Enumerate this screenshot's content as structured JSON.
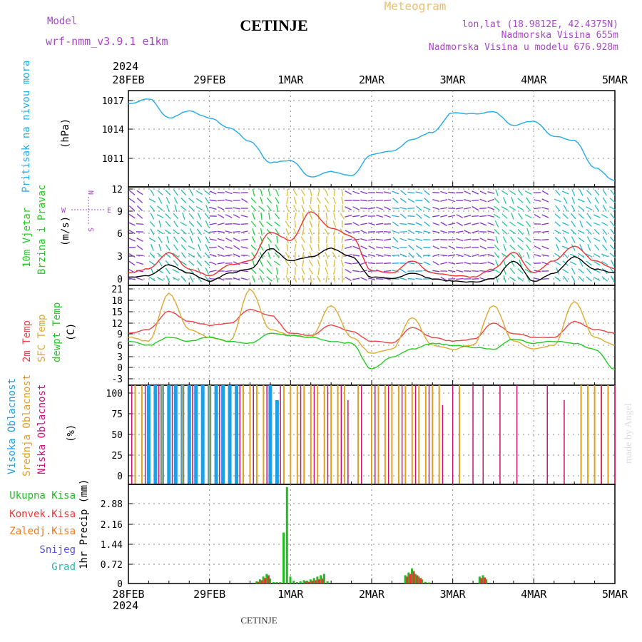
{
  "header": {
    "model_label": "Model",
    "model_name": "wrf-nmm_v3.9.1 e1km",
    "title": "CETINJE",
    "meteogram_label": "Meteogram",
    "lonlat": "lon,lat (18.9812E, 42.4375N)",
    "elevation": "Nadmorska Visina 655m",
    "model_elevation": "Nadmorska Visina u modelu 676.928m",
    "footer_location": "CETINJE",
    "watermark": "made by Angel",
    "year_top": "2024",
    "year_bottom": "2024"
  },
  "colors": {
    "pressure": "#22aaee",
    "temp2m": "#ee4444",
    "sfc": "#ddaa33",
    "dewpt": "#22cc22",
    "high_cloud": "#1ea0e8",
    "mid_cloud": "#e0a020",
    "low_cloud": "#cc1177",
    "total_precip": "#22bb22",
    "conv_precip": "#ee3333",
    "frozen_precip": "#ee7722",
    "snow": "#5555dd",
    "hail": "#22bbaa",
    "grid": "#888888",
    "label_purple": "#aa44cc"
  },
  "x_axis": {
    "start": "2024-02-28 00:00",
    "end": "2024-03-05 00:00",
    "ticks": [
      "28FEB",
      "29FEB",
      "1MAR",
      "2MAR",
      "3MAR",
      "4MAR",
      "5MAR"
    ]
  },
  "chart_data": [
    {
      "type": "line",
      "panel": "pressure",
      "ylabel_main": "Pritisak na nivou mora",
      "unit": "(hPa)",
      "ylim": [
        1009,
        1018.5
      ],
      "yticks": [
        "1017",
        "1014",
        "1011"
      ],
      "series": [
        {
          "name": "Pritisak na nivou mora",
          "x": [
            "2024-02-28 00:00",
            "2024-02-28 06:00",
            "2024-02-28 12:00",
            "2024-02-28 18:00",
            "2024-02-29 00:00",
            "2024-02-29 06:00",
            "2024-02-29 12:00",
            "2024-02-29 18:00",
            "2024-03-01 00:00",
            "2024-03-01 06:00",
            "2024-03-01 12:00",
            "2024-03-01 18:00",
            "2024-03-02 00:00",
            "2024-03-02 06:00",
            "2024-03-02 12:00",
            "2024-03-02 18:00",
            "2024-03-03 00:00",
            "2024-03-03 06:00",
            "2024-03-03 12:00",
            "2024-03-03 18:00",
            "2024-03-04 00:00",
            "2024-03-04 06:00",
            "2024-03-04 12:00",
            "2024-03-04 18:00",
            "2024-03-05 00:00"
          ],
          "y": [
            1017.2,
            1017.7,
            1015.8,
            1016.5,
            1015.8,
            1014.8,
            1013.5,
            1011.4,
            1011.6,
            1010,
            1010.5,
            1010.1,
            1012.2,
            1012.5,
            1013.7,
            1014.4,
            1016.3,
            1016.2,
            1016.4,
            1015.1,
            1015.5,
            1014,
            1013.6,
            1010.9,
            1009.6
          ]
        }
      ]
    },
    {
      "type": "line",
      "panel": "wind",
      "ylabel_main": "10m Vjetar",
      "ylabel_sub": "Brzina i Pravac",
      "unit": "(m/s)",
      "compass": [
        "N",
        "E",
        "S",
        "W"
      ],
      "ylim": [
        0,
        12
      ],
      "yticks": [
        "12",
        "9",
        "6",
        "3",
        "0"
      ],
      "series": [
        {
          "name": "speed",
          "x": [
            "2024-02-28 00:00",
            "2024-02-28 06:00",
            "2024-02-28 12:00",
            "2024-02-28 18:00",
            "2024-02-29 00:00",
            "2024-02-29 06:00",
            "2024-02-29 12:00",
            "2024-02-29 18:00",
            "2024-03-01 00:00",
            "2024-03-01 06:00",
            "2024-03-01 12:00",
            "2024-03-01 18:00",
            "2024-03-02 00:00",
            "2024-03-02 06:00",
            "2024-03-02 12:00",
            "2024-03-02 18:00",
            "2024-03-03 00:00",
            "2024-03-03 06:00",
            "2024-03-03 12:00",
            "2024-03-03 18:00",
            "2024-03-04 00:00",
            "2024-03-04 06:00",
            "2024-03-04 12:00",
            "2024-03-04 18:00",
            "2024-03-05 00:00"
          ],
          "y": [
            1,
            1.2,
            2.5,
            1.5,
            0.5,
            1.5,
            2,
            4.5,
            3,
            3.5,
            4.5,
            3.5,
            1,
            0.8,
            1.5,
            0.8,
            0.5,
            0.4,
            0.8,
            3,
            0.5,
            1.5,
            3.5,
            2,
            1.5
          ]
        },
        {
          "name": "gust",
          "x": [
            "2024-02-28 00:00",
            "2024-02-28 06:00",
            "2024-02-28 12:00",
            "2024-02-28 18:00",
            "2024-02-29 00:00",
            "2024-02-29 06:00",
            "2024-02-29 12:00",
            "2024-02-29 18:00",
            "2024-03-01 00:00",
            "2024-03-01 06:00",
            "2024-03-01 12:00",
            "2024-03-01 18:00",
            "2024-03-02 00:00",
            "2024-03-02 06:00",
            "2024-03-02 12:00",
            "2024-03-02 18:00",
            "2024-03-03 00:00",
            "2024-03-03 06:00",
            "2024-03-03 12:00",
            "2024-03-03 18:00",
            "2024-03-04 00:00",
            "2024-03-04 06:00",
            "2024-03-04 12:00",
            "2024-03-04 18:00",
            "2024-03-05 00:00"
          ],
          "y": [
            1.5,
            2,
            4,
            2,
            1.2,
            2.5,
            3,
            6.5,
            5.5,
            9,
            7,
            6,
            1.8,
            1.5,
            3,
            1.5,
            1.2,
            1,
            2,
            4,
            1.5,
            3,
            4.8,
            3,
            2
          ]
        }
      ]
    },
    {
      "type": "line",
      "panel": "temperature",
      "ylabel_main": "2m Temp",
      "ylabel_sub": "SFC Temp",
      "ylabel_third": "dewpt Temp",
      "unit": "(C)",
      "ylim": [
        -4,
        21
      ],
      "yticks": [
        "21",
        "18",
        "15",
        "12",
        "9",
        "6",
        "3",
        "0",
        "-3"
      ],
      "series": [
        {
          "name": "2m Temp",
          "x": [
            "2024-02-28 00:00",
            "2024-02-28 06:00",
            "2024-02-28 12:00",
            "2024-02-28 18:00",
            "2024-02-29 00:00",
            "2024-02-29 06:00",
            "2024-02-29 12:00",
            "2024-02-29 18:00",
            "2024-03-01 00:00",
            "2024-03-01 06:00",
            "2024-03-01 12:00",
            "2024-03-01 18:00",
            "2024-03-02 00:00",
            "2024-03-02 06:00",
            "2024-03-02 12:00",
            "2024-03-02 18:00",
            "2024-03-03 00:00",
            "2024-03-03 06:00",
            "2024-03-03 12:00",
            "2024-03-03 18:00",
            "2024-03-04 00:00",
            "2024-03-04 06:00",
            "2024-03-04 12:00",
            "2024-03-04 18:00",
            "2024-03-05 00:00"
          ],
          "y": [
            9,
            10,
            14.5,
            12,
            11,
            11.5,
            15,
            13.5,
            9,
            8.5,
            11,
            9.5,
            7,
            6.5,
            10.5,
            8,
            7,
            7.5,
            11.5,
            9,
            8,
            8,
            12,
            10,
            9
          ]
        },
        {
          "name": "SFC Temp",
          "x": [
            "2024-02-28 00:00",
            "2024-02-28 06:00",
            "2024-02-28 12:00",
            "2024-02-28 18:00",
            "2024-02-29 00:00",
            "2024-02-29 06:00",
            "2024-02-29 12:00",
            "2024-02-29 18:00",
            "2024-03-01 00:00",
            "2024-03-01 06:00",
            "2024-03-01 12:00",
            "2024-03-01 18:00",
            "2024-03-02 00:00",
            "2024-03-02 06:00",
            "2024-03-02 12:00",
            "2024-03-02 18:00",
            "2024-03-03 00:00",
            "2024-03-03 06:00",
            "2024-03-03 12:00",
            "2024-03-03 18:00",
            "2024-03-04 00:00",
            "2024-03-04 06:00",
            "2024-03-04 12:00",
            "2024-03-04 18:00",
            "2024-03-05 00:00"
          ],
          "y": [
            8,
            7,
            19,
            10,
            8,
            7,
            20,
            10,
            8.5,
            8,
            16,
            8,
            4,
            5,
            13,
            6,
            5,
            6,
            16,
            7,
            5,
            6,
            17,
            8,
            6
          ]
        },
        {
          "name": "dewpt Temp",
          "x": [
            "2024-02-28 00:00",
            "2024-02-28 06:00",
            "2024-02-28 12:00",
            "2024-02-28 18:00",
            "2024-02-29 00:00",
            "2024-02-29 06:00",
            "2024-02-29 12:00",
            "2024-02-29 18:00",
            "2024-03-01 00:00",
            "2024-03-01 06:00",
            "2024-03-01 12:00",
            "2024-03-01 18:00",
            "2024-03-02 00:00",
            "2024-03-02 06:00",
            "2024-03-02 12:00",
            "2024-03-02 18:00",
            "2024-03-03 00:00",
            "2024-03-03 06:00",
            "2024-03-03 12:00",
            "2024-03-03 18:00",
            "2024-03-04 00:00",
            "2024-03-04 06:00",
            "2024-03-04 12:00",
            "2024-03-04 18:00",
            "2024-03-05 00:00"
          ],
          "y": [
            7,
            6,
            8,
            7,
            8,
            7,
            6.5,
            9,
            8.5,
            8,
            7,
            6.5,
            0,
            3,
            5,
            6.5,
            6,
            5.5,
            5,
            7.5,
            6.5,
            7,
            6.5,
            5,
            0
          ]
        }
      ]
    },
    {
      "type": "bar",
      "panel": "cloud",
      "ylabel_main": "Visoka Oblacnost",
      "ylabel_sub": "Srednja Oblacnost",
      "ylabel_third": "Niska Oblacnost",
      "unit": "(%)",
      "ylim": [
        0,
        100
      ],
      "yticks": [
        "100",
        "75",
        "50",
        "25",
        "0"
      ],
      "series": [
        {
          "name": "Visoka Oblacnost",
          "x": [
            "2024-02-28 06:00",
            "2024-02-28 08:00",
            "2024-02-28 10:00",
            "2024-02-28 12:00",
            "2024-02-28 14:00",
            "2024-02-28 16:00",
            "2024-02-28 18:00",
            "2024-02-28 20:00",
            "2024-02-28 22:00",
            "2024-02-29 00:00",
            "2024-02-29 02:00",
            "2024-02-29 04:00",
            "2024-02-29 06:00",
            "2024-02-29 08:00",
            "2024-02-29 18:00",
            "2024-02-29 20:00"
          ],
          "y": [
            100,
            100,
            100,
            100,
            100,
            100,
            100,
            100,
            100,
            100,
            100,
            100,
            100,
            100,
            100,
            85
          ]
        },
        {
          "name": "Srednja Oblacnost",
          "x": [
            "2024-02-28 02:00",
            "2024-02-28 04:00",
            "2024-02-28 10:00",
            "2024-02-28 16:00",
            "2024-02-29 00:00",
            "2024-02-29 10:00",
            "2024-02-29 12:00",
            "2024-02-29 14:00",
            "2024-02-29 16:00",
            "2024-02-29 22:00",
            "2024-03-01 00:00",
            "2024-03-01 02:00",
            "2024-03-01 04:00",
            "2024-03-01 06:00",
            "2024-03-01 08:00",
            "2024-03-01 10:00",
            "2024-03-01 12:00",
            "2024-03-01 14:00",
            "2024-03-01 16:00",
            "2024-03-01 20:00",
            "2024-03-02 00:00",
            "2024-03-02 02:00",
            "2024-03-02 04:00",
            "2024-03-02 06:00",
            "2024-03-02 08:00",
            "2024-03-02 10:00",
            "2024-03-02 12:00",
            "2024-03-02 14:00",
            "2024-03-02 16:00",
            "2024-03-02 18:00",
            "2024-03-02 20:00",
            "2024-03-03 02:00",
            "2024-03-04 14:00",
            "2024-03-04 16:00",
            "2024-03-04 18:00",
            "2024-03-04 20:00",
            "2024-03-04 22:00",
            "2024-03-05 00:00"
          ],
          "y": [
            100,
            100,
            100,
            100,
            100,
            100,
            100,
            100,
            100,
            100,
            100,
            100,
            100,
            100,
            100,
            100,
            100,
            100,
            100,
            100,
            100,
            100,
            100,
            100,
            100,
            100,
            100,
            100,
            100,
            100,
            100,
            100,
            100,
            100,
            100,
            100,
            100,
            100
          ]
        },
        {
          "name": "Niska Oblacnost",
          "x": [
            "2024-02-28 01:00",
            "2024-02-28 05:00",
            "2024-02-28 09:00",
            "2024-02-28 13:00",
            "2024-02-28 19:00",
            "2024-02-29 03:00",
            "2024-02-29 09:00",
            "2024-02-29 13:00",
            "2024-02-29 17:00",
            "2024-02-29 21:00",
            "2024-03-01 03:00",
            "2024-03-01 07:00",
            "2024-03-01 11:00",
            "2024-03-01 15:00",
            "2024-03-01 17:00",
            "2024-03-01 21:00",
            "2024-03-02 01:00",
            "2024-03-02 05:00",
            "2024-03-02 09:00",
            "2024-03-02 13:00",
            "2024-03-02 17:00",
            "2024-03-02 21:00",
            "2024-03-03 00:00",
            "2024-03-03 06:00",
            "2024-03-03 09:00",
            "2024-03-03 14:00",
            "2024-03-03 19:00",
            "2024-03-04 04:00",
            "2024-03-04 09:00",
            "2024-03-04 20:00",
            "2024-03-05 00:00"
          ],
          "y": [
            100,
            100,
            100,
            100,
            100,
            100,
            100,
            100,
            100,
            100,
            100,
            100,
            100,
            100,
            85,
            100,
            100,
            100,
            100,
            100,
            100,
            80,
            100,
            100,
            100,
            100,
            100,
            100,
            85,
            100,
            100
          ]
        }
      ]
    },
    {
      "type": "bar",
      "panel": "precip",
      "ylabel_main": "1hr Precip (mm)",
      "legend": [
        "Ukupna Kisa",
        "Konvek.Kisa",
        "Zaledj.Kisa",
        "Snijeg",
        "Grad"
      ],
      "ylim": [
        0,
        3.6
      ],
      "yticks": [
        "2.88",
        "2.16",
        "1.44",
        "0.72",
        "0"
      ],
      "series": [
        {
          "name": "Ukupna Kisa",
          "x": [
            "2024-02-29 14:00",
            "2024-02-29 15:00",
            "2024-02-29 16:00",
            "2024-02-29 17:00",
            "2024-02-29 18:00",
            "2024-02-29 19:00",
            "2024-02-29 20:00",
            "2024-02-29 21:00",
            "2024-02-29 22:00",
            "2024-02-29 23:00",
            "2024-03-01 00:00",
            "2024-03-01 01:00",
            "2024-03-01 02:00",
            "2024-03-01 03:00",
            "2024-03-01 04:00",
            "2024-03-01 05:00",
            "2024-03-01 06:00",
            "2024-03-01 07:00",
            "2024-03-01 08:00",
            "2024-03-01 09:00",
            "2024-03-01 10:00",
            "2024-03-01 11:00",
            "2024-03-02 10:00",
            "2024-03-02 11:00",
            "2024-03-02 12:00",
            "2024-03-02 13:00",
            "2024-03-02 14:00",
            "2024-03-02 15:00",
            "2024-03-02 16:00",
            "2024-03-02 17:00",
            "2024-03-03 08:00",
            "2024-03-03 09:00",
            "2024-03-03 10:00"
          ],
          "y": [
            0.08,
            0.15,
            0.25,
            0.35,
            0.18,
            0.05,
            0.05,
            0.05,
            1.85,
            3.5,
            0.25,
            0.1,
            0.05,
            0.08,
            0.12,
            0.1,
            0.15,
            0.2,
            0.25,
            0.3,
            0.35,
            0.08,
            0.3,
            0.4,
            0.55,
            0.35,
            0.25,
            0.15,
            0.06,
            0.04,
            0.25,
            0.3,
            0.15
          ]
        },
        {
          "name": "Konvek.Kisa",
          "x": [
            "2024-02-29 14:00",
            "2024-02-29 15:00",
            "2024-02-29 16:00",
            "2024-02-29 17:00",
            "2024-03-01 04:00",
            "2024-03-01 05:00",
            "2024-03-01 06:00",
            "2024-03-01 07:00",
            "2024-03-01 08:00",
            "2024-03-01 09:00",
            "2024-03-02 10:00",
            "2024-03-02 11:00",
            "2024-03-02 12:00",
            "2024-03-02 13:00",
            "2024-03-02 14:00",
            "2024-03-03 08:00",
            "2024-03-03 09:00"
          ],
          "y": [
            0.06,
            0.12,
            0.2,
            0.3,
            0.08,
            0.06,
            0.1,
            0.12,
            0.15,
            0.18,
            0.25,
            0.35,
            0.45,
            0.3,
            0.2,
            0.2,
            0.22
          ]
        }
      ]
    }
  ]
}
